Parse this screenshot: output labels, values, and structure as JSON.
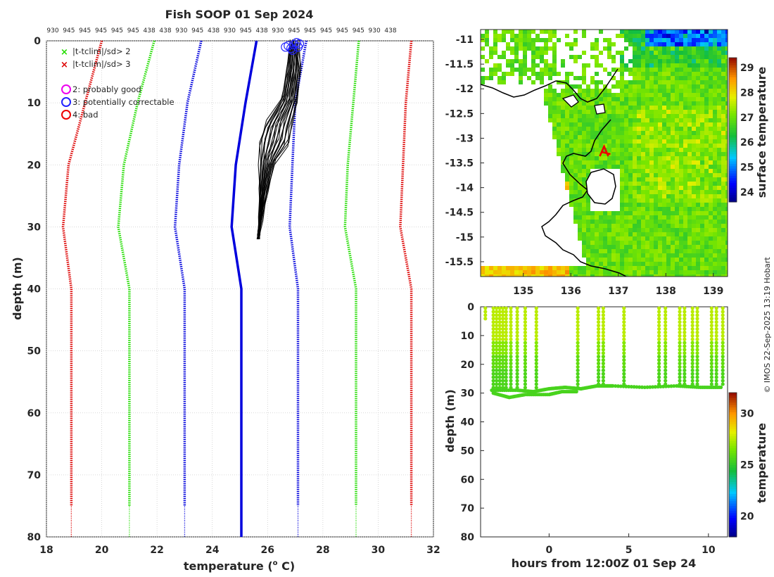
{
  "title": "Fish SOOP 01 Sep 2024",
  "credit": "© IMOS 22-Sep-2025 13:19 Hobart",
  "colors": {
    "red_clim": "#dd0000",
    "green_clim": "#22dd00",
    "blue_clim": "#0000dd",
    "profile": "#000000",
    "circle_blue": "#2222ff"
  },
  "chart_data": [
    {
      "type": "line",
      "name": "profile-panel",
      "xlabel": "temperature (",
      "xlabel_sup": "o",
      "xlabel_tail": " C)",
      "ylabel": "depth (m)",
      "xlim": [
        18,
        32
      ],
      "ylim": [
        0,
        80
      ],
      "xticks": [
        "18",
        "20",
        "22",
        "24",
        "26",
        "28",
        "30",
        "32"
      ],
      "yticks": [
        "0",
        "10",
        "20",
        "30",
        "40",
        "50",
        "60",
        "70",
        "80"
      ],
      "top_labels": [
        "930",
        "945",
        "945",
        "945",
        "945",
        "945",
        "438",
        "438",
        "930",
        "945",
        "438",
        "930",
        "945",
        "438",
        "930",
        "945",
        "945",
        "945",
        "945",
        "945",
        "930",
        "438"
      ],
      "legend": {
        "x_labels": [
          "|t-tclim|/sd> 2",
          "|t-tclim|/sd> 3"
        ],
        "circle_labels": [
          "2: probably good",
          "3: potentially correctable",
          "4: bad"
        ]
      },
      "climatology": {
        "mean": {
          "depth": [
            0,
            10,
            20,
            30,
            40,
            75,
            80
          ],
          "temp": [
            25.6,
            25.2,
            24.85,
            24.7,
            25.05,
            25.05,
            25.05
          ]
        },
        "minus1": {
          "depth": [
            0,
            10,
            20,
            30,
            40,
            75
          ],
          "temp": [
            23.6,
            23.1,
            22.8,
            22.65,
            23.0,
            23.0
          ]
        },
        "plus1": {
          "depth": [
            0,
            10,
            20,
            30,
            40,
            75
          ],
          "temp": [
            27.4,
            27.0,
            26.9,
            26.8,
            27.1,
            27.1
          ]
        },
        "minus2": {
          "depth": [
            0,
            10,
            20,
            30,
            40,
            75
          ],
          "temp": [
            21.9,
            21.3,
            20.8,
            20.6,
            21.0,
            21.0
          ]
        },
        "plus2": {
          "depth": [
            0,
            10,
            20,
            30,
            40,
            75
          ],
          "temp": [
            29.3,
            29.1,
            28.9,
            28.8,
            29.2,
            29.2
          ]
        },
        "minus3": {
          "depth": [
            0,
            10,
            20,
            30,
            40,
            75
          ],
          "temp": [
            20.0,
            19.4,
            18.8,
            18.6,
            18.9,
            18.9
          ]
        },
        "plus3": {
          "depth": [
            0,
            10,
            20,
            30,
            40,
            75
          ],
          "temp": [
            31.2,
            31.0,
            30.9,
            30.8,
            31.2,
            31.2
          ]
        }
      },
      "profile_envelope": {
        "depth": [
          1,
          5,
          10,
          14,
          17,
          20,
          25,
          29,
          32
        ],
        "temp_min": [
          26.8,
          26.7,
          26.5,
          25.9,
          25.7,
          25.7,
          25.7,
          25.7,
          25.65
        ],
        "temp_max": [
          27.1,
          27.2,
          27.1,
          26.9,
          26.8,
          26.3,
          26.0,
          25.8,
          25.7
        ]
      },
      "circles_qc3": [
        {
          "temp": 26.65,
          "depth": 1.0
        },
        {
          "temp": 26.75,
          "depth": 0.8
        },
        {
          "temp": 26.85,
          "depth": 1.2
        },
        {
          "temp": 26.95,
          "depth": 0.6
        },
        {
          "temp": 27.05,
          "depth": 0.3
        },
        {
          "temp": 27.1,
          "depth": 1.0
        },
        {
          "temp": 27.15,
          "depth": 0.5
        },
        {
          "temp": 26.9,
          "depth": 1.5
        }
      ]
    },
    {
      "type": "heatmap",
      "name": "sst-map",
      "xlim": [
        134.1,
        139.3
      ],
      "ylim": [
        -15.8,
        -10.8
      ],
      "xticks": [
        "135",
        "136",
        "137",
        "138",
        "139"
      ],
      "yticks": [
        "-11",
        "-11.5",
        "-12",
        "-12.5",
        "-13",
        "-13.5",
        "-14",
        "-14.5",
        "-15",
        "-15.5"
      ],
      "colorbar_label": "surface temperature",
      "colorbar_ticks": [
        "24",
        "25",
        "26",
        "27",
        "28",
        "29"
      ],
      "colorbar_range": [
        23.6,
        29.4
      ],
      "track_marker": {
        "lon": 136.7,
        "lat": -13.25
      }
    },
    {
      "type": "scatter",
      "name": "depth-time",
      "xlabel": "hours from 12:00Z 01 Sep 24",
      "ylabel": "depth (m)",
      "xlim": [
        -4.3,
        11.2
      ],
      "ylim": [
        0,
        80
      ],
      "xticks": [
        "0",
        "5",
        "10"
      ],
      "yticks": [
        "0",
        "10",
        "20",
        "30",
        "40",
        "50",
        "60",
        "70",
        "80"
      ],
      "colorbar_label": "temperature",
      "colorbar_ticks": [
        "20",
        "25",
        "30"
      ],
      "colorbar_range": [
        18,
        32
      ],
      "casts": [
        {
          "t": -4.0,
          "bottom": 5
        },
        {
          "t": -3.5,
          "bottom": 29
        },
        {
          "t": -3.3,
          "bottom": 29
        },
        {
          "t": -3.1,
          "bottom": 29
        },
        {
          "t": -2.9,
          "bottom": 29
        },
        {
          "t": -2.7,
          "bottom": 29
        },
        {
          "t": -2.4,
          "bottom": 29
        },
        {
          "t": -2.0,
          "bottom": 29
        },
        {
          "t": -1.5,
          "bottom": 29
        },
        {
          "t": -0.8,
          "bottom": 29
        },
        {
          "t": 1.8,
          "bottom": 29
        },
        {
          "t": 3.1,
          "bottom": 28
        },
        {
          "t": 3.4,
          "bottom": 28
        },
        {
          "t": 4.7,
          "bottom": 28
        },
        {
          "t": 6.9,
          "bottom": 28
        },
        {
          "t": 7.3,
          "bottom": 28
        },
        {
          "t": 8.2,
          "bottom": 28
        },
        {
          "t": 8.5,
          "bottom": 28
        },
        {
          "t": 9.0,
          "bottom": 28
        },
        {
          "t": 9.3,
          "bottom": 28
        },
        {
          "t": 10.2,
          "bottom": 28
        },
        {
          "t": 10.5,
          "bottom": 28
        },
        {
          "t": 10.9,
          "bottom": 28
        }
      ],
      "bottom_track": {
        "t": [
          -3.6,
          -2.0,
          -1.0,
          0.0,
          1.0,
          2.0,
          3.0,
          4.0,
          6.0,
          8.0,
          9.5,
          10.9
        ],
        "depth": [
          29,
          29,
          29.5,
          28.5,
          28,
          28.5,
          27.5,
          27.5,
          28,
          27.5,
          28,
          28
        ]
      },
      "lower_track": {
        "t": [
          -3.5,
          -2.5,
          -1.5,
          0.0,
          0.8,
          1.8
        ],
        "depth": [
          30,
          31.5,
          30.5,
          30.5,
          29.5,
          29.5
        ]
      }
    }
  ]
}
